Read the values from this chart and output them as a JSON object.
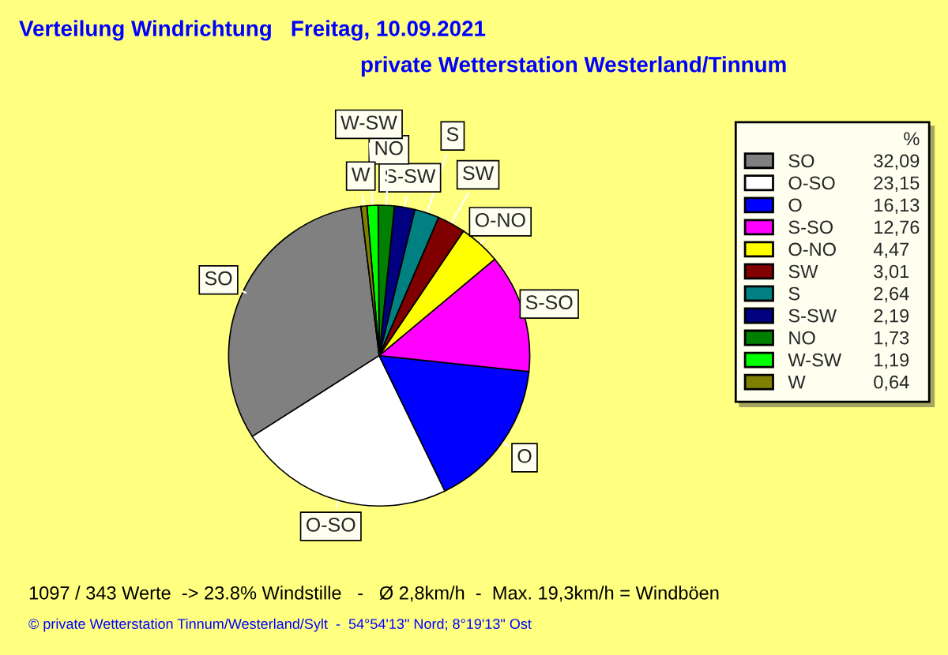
{
  "chart_data": {
    "type": "pie",
    "title": "Verteilung Windrichtung   Freitag, 10.09.2021",
    "subtitle": "private Wetterstation Westerland/Tinnum",
    "categories": [
      "SO",
      "O-SO",
      "O",
      "S-SO",
      "O-NO",
      "SW",
      "S",
      "S-SW",
      "NO",
      "W-SW",
      "W"
    ],
    "values": [
      32.09,
      23.15,
      16.13,
      12.76,
      4.47,
      3.01,
      2.64,
      2.19,
      1.73,
      1.19,
      0.64
    ],
    "value_labels": [
      "32,09",
      "23,15",
      "16,13",
      "12,76",
      "4,47",
      "3,01",
      "2,64",
      "2,19",
      "1,73",
      "1,19",
      "0,64"
    ],
    "colors": [
      "#808080",
      "#ffffff",
      "#0000ff",
      "#ff00ff",
      "#ffff00",
      "#800000",
      "#008080",
      "#000080",
      "#008000",
      "#00ff00",
      "#808000"
    ],
    "legend_title": "%",
    "legend": "right",
    "annotations": [
      "1097 / 343 Werte  -> 23.8% Windstille   -   Ø 2,8km/h  -  Max. 19,3km/h = Windböen",
      "© private Wetterstation Tinnum/Westerland/Sylt  -  54°54'13\" Nord; 8°19'13\" Ost"
    ]
  }
}
